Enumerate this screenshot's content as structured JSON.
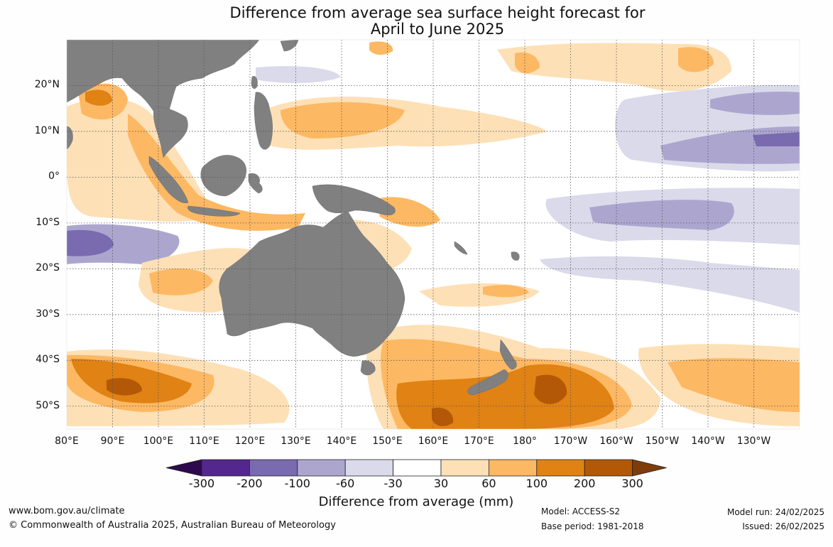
{
  "title": {
    "line1": "Difference from average sea surface height forecast for",
    "line2": "April to June 2025"
  },
  "map": {
    "latitude_labels": [
      "20°N",
      "10°N",
      "0°",
      "10°S",
      "20°S",
      "30°S",
      "40°S",
      "50°S"
    ],
    "longitude_labels": [
      "80°E",
      "90°E",
      "100°E",
      "110°E",
      "120°E",
      "130°E",
      "140°E",
      "150°E",
      "160°E",
      "170°E",
      "180°",
      "170°W",
      "160°W",
      "150°W",
      "140°W",
      "130°W"
    ],
    "extent": {
      "lon_min_east": 80,
      "lon_max_east": 240,
      "lat_min": -55,
      "lat_max": 30
    },
    "land_color": "#808080",
    "land_names": [
      "asia-landmass",
      "indochina",
      "borneo",
      "sumatra",
      "australia",
      "new-guinea",
      "philippines",
      "new-zealand-north",
      "new-zealand-south"
    ]
  },
  "colorbar": {
    "ticks": [
      "-300",
      "-200",
      "-100",
      "-60",
      "-30",
      "30",
      "60",
      "100",
      "200",
      "300"
    ],
    "colors": [
      "#2d0a4d",
      "#54278f",
      "#7a6aaf",
      "#aca6cf",
      "#dadaeb",
      "#ffffff",
      "#fee0b6",
      "#fdb863",
      "#e08214",
      "#b35806",
      "#7f3b08"
    ],
    "label": "Difference from average (mm)"
  },
  "footer": {
    "website": "www.bom.gov.au/climate",
    "copyright": "© Commonwealth of Australia 2025, Australian Bureau of Meteorology",
    "model": "Model: ACCESS-S2",
    "base_period": "Base period: 1981-2018",
    "model_run": "Model run: 24/02/2025",
    "issued": "Issued: 26/02/2025"
  }
}
